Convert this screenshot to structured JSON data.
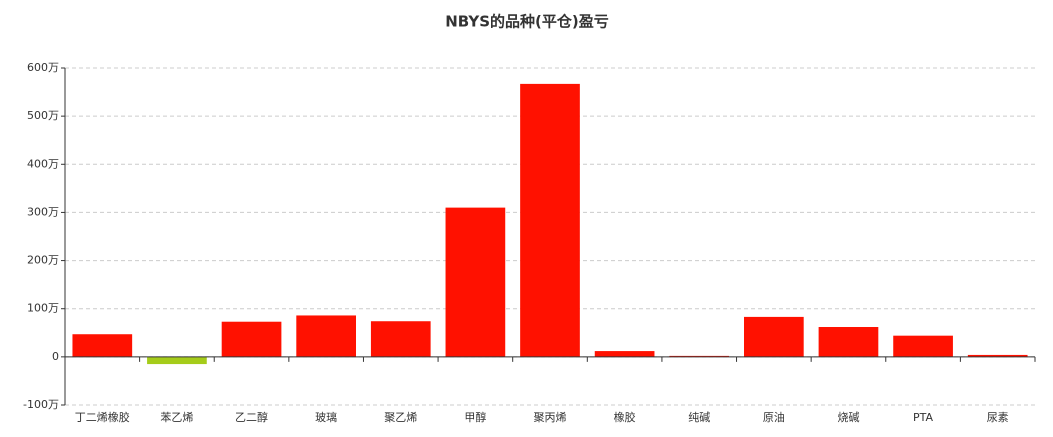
{
  "chart_data": {
    "type": "bar",
    "title": "NBYS的品种(平仓)盈亏",
    "categories": [
      "丁二烯橡胶",
      "苯乙烯",
      "乙二醇",
      "玻璃",
      "聚乙烯",
      "甲醇",
      "聚丙烯",
      "橡胶",
      "纯碱",
      "原油",
      "烧碱",
      "PTA",
      "尿素"
    ],
    "values": [
      47,
      -15,
      73,
      86,
      74,
      310,
      567,
      12,
      2,
      83,
      62,
      44,
      4
    ],
    "color": "#ff1100",
    "negative_color": "#a5cc1a",
    "ylim": [
      -100,
      600
    ],
    "yticks": [
      {
        "value": -100,
        "label": "-100万"
      },
      0,
      {
        "value": 100,
        "label": "100万"
      },
      {
        "value": 200,
        "label": "200万"
      },
      {
        "value": 300,
        "label": "300万"
      },
      {
        "value": 400,
        "label": "400万"
      },
      {
        "value": 500,
        "label": "500万"
      },
      {
        "value": 600,
        "label": "600万"
      }
    ],
    "grid": true
  }
}
